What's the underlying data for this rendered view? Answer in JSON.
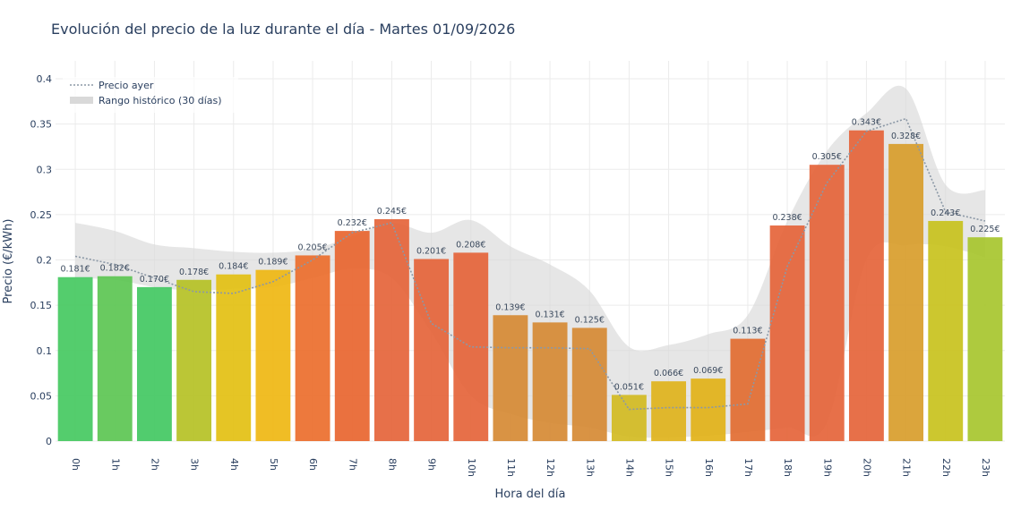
{
  "chart_data": {
    "type": "bar",
    "title": "Evolución del precio de la luz durante el día - Martes 01/09/2026",
    "xlabel": "Hora del día",
    "ylabel": "Precio (€/kWh)",
    "ylim": [
      0,
      0.4
    ],
    "yticks": [
      "0",
      "0.05",
      "0.1",
      "0.15",
      "0.2",
      "0.25",
      "0.3",
      "0.35",
      "0.4"
    ],
    "ytick_values": [
      0,
      0.05,
      0.1,
      0.15,
      0.2,
      0.25,
      0.3,
      0.35,
      0.4
    ],
    "grid": true,
    "legend_position": "top-left",
    "categories": [
      "0h",
      "1h",
      "2h",
      "3h",
      "4h",
      "5h",
      "6h",
      "7h",
      "8h",
      "9h",
      "10h",
      "11h",
      "12h",
      "13h",
      "14h",
      "15h",
      "16h",
      "17h",
      "18h",
      "19h",
      "20h",
      "21h",
      "22h",
      "23h"
    ],
    "series": [
      {
        "type": "bar",
        "values": [
          0.181,
          0.182,
          0.17,
          0.178,
          0.184,
          0.189,
          0.205,
          0.232,
          0.245,
          0.201,
          0.208,
          0.139,
          0.131,
          0.125,
          0.051,
          0.066,
          0.069,
          0.113,
          0.238,
          0.305,
          0.343,
          0.328,
          0.243,
          0.225
        ],
        "labels": [
          "0.181€",
          "0.182€",
          "0.170€",
          "0.178€",
          "0.184€",
          "0.189€",
          "0.205€",
          "0.232€",
          "0.245€",
          "0.201€",
          "0.208€",
          "0.139€",
          "0.131€",
          "0.125€",
          "0.051€",
          "0.066€",
          "0.069€",
          "0.113€",
          "0.238€",
          "0.305€",
          "0.343€",
          "0.328€",
          "0.243€",
          "0.225€"
        ],
        "colors": [
          "#45c961",
          "#5cc653",
          "#42c862",
          "#b5c125",
          "#e3c012",
          "#efb712",
          "#eb6e2c",
          "#e8652f",
          "#e5643a",
          "#e5643a",
          "#e5643a",
          "#d68a34",
          "#d68a34",
          "#d68a34",
          "#d2bb22",
          "#dfb31c",
          "#e2b218",
          "#e26c31",
          "#e5643a",
          "#e5643a",
          "#e5643a",
          "#d89d2b",
          "#c8c21d",
          "#a7c52e"
        ]
      },
      {
        "name": "Precio ayer",
        "type": "line",
        "style": "dotted",
        "color": "#8b98a6",
        "values": [
          0.204,
          0.195,
          0.18,
          0.165,
          0.163,
          0.176,
          0.2,
          0.23,
          0.241,
          0.13,
          0.104,
          0.103,
          0.103,
          0.102,
          0.035,
          0.037,
          0.037,
          0.041,
          0.193,
          0.285,
          0.342,
          0.356,
          0.253,
          0.243
        ]
      },
      {
        "name": "Rango histórico (30 días)",
        "type": "area",
        "color": "#d9d9d9",
        "upper": [
          0.241,
          0.232,
          0.217,
          0.213,
          0.209,
          0.208,
          0.212,
          0.226,
          0.241,
          0.23,
          0.244,
          0.215,
          0.195,
          0.166,
          0.104,
          0.106,
          0.118,
          0.139,
          0.243,
          0.32,
          0.362,
          0.389,
          0.283,
          0.277
        ],
        "lower": [
          0.18,
          0.178,
          0.17,
          0.166,
          0.168,
          0.17,
          0.18,
          0.19,
          0.18,
          0.12,
          0.05,
          0.03,
          0.02,
          0.015,
          0.005,
          0.004,
          0.006,
          0.01,
          0.015,
          0.02,
          0.2,
          0.216,
          0.215,
          0.203
        ]
      }
    ]
  }
}
